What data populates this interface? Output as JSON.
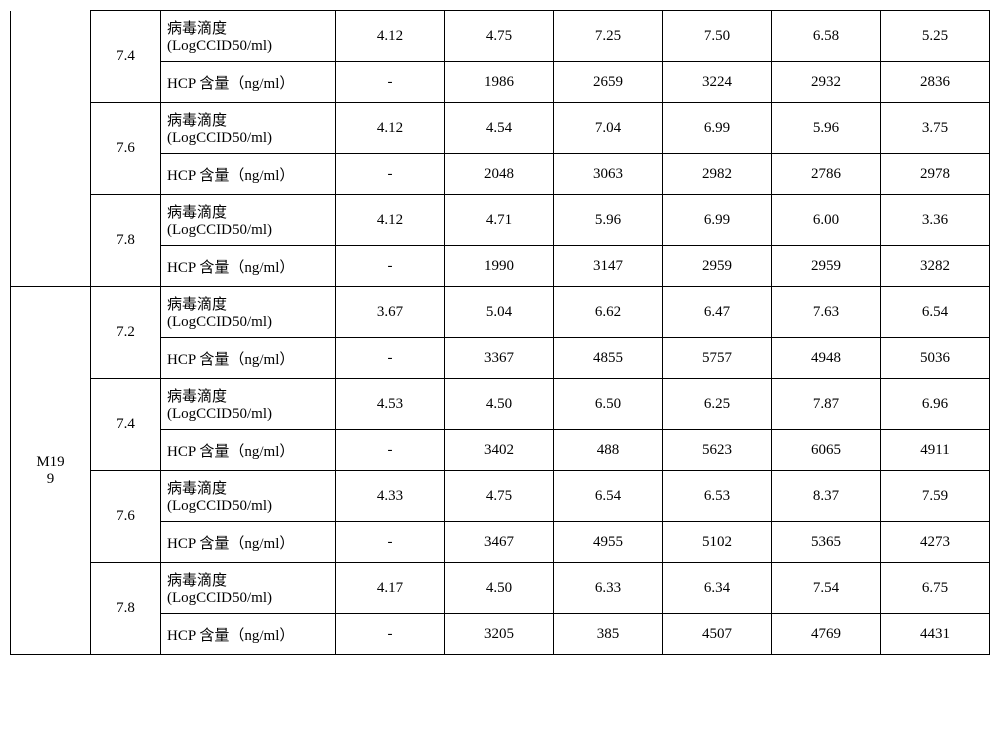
{
  "labels": {
    "titer": "病毒滴度",
    "titerUnit": "(LogCCID50/ml)",
    "hcp": "HCP 含量（ng/ml）"
  },
  "groups": [
    {
      "name": "",
      "showName": false,
      "phRows": [
        {
          "ph": "7.4",
          "titer": [
            "4.12",
            "4.75",
            "7.25",
            "7.50",
            "6.58",
            "5.25"
          ],
          "hcp": [
            "-",
            "1986",
            "2659",
            "3224",
            "2932",
            "2836"
          ]
        },
        {
          "ph": "7.6",
          "titer": [
            "4.12",
            "4.54",
            "7.04",
            "6.99",
            "5.96",
            "3.75"
          ],
          "hcp": [
            "-",
            "2048",
            "3063",
            "2982",
            "2786",
            "2978"
          ]
        },
        {
          "ph": "7.8",
          "titer": [
            "4.12",
            "4.71",
            "5.96",
            "6.99",
            "6.00",
            "3.36"
          ],
          "hcp": [
            "-",
            "1990",
            "3147",
            "2959",
            "2959",
            "3282"
          ]
        }
      ]
    },
    {
      "name": "M19\n9",
      "showName": true,
      "phRows": [
        {
          "ph": "7.2",
          "titer": [
            "3.67",
            "5.04",
            "6.62",
            "6.47",
            "7.63",
            "6.54"
          ],
          "hcp": [
            "-",
            "3367",
            "4855",
            "5757",
            "4948",
            "5036"
          ]
        },
        {
          "ph": "7.4",
          "titer": [
            "4.53",
            "4.50",
            "6.50",
            "6.25",
            "7.87",
            "6.96"
          ],
          "hcp": [
            "-",
            "3402",
            "488",
            "5623",
            "6065",
            "4911"
          ]
        },
        {
          "ph": "7.6",
          "titer": [
            "4.33",
            "4.75",
            "6.54",
            "6.53",
            "8.37",
            "7.59"
          ],
          "hcp": [
            "-",
            "3467",
            "4955",
            "5102",
            "5365",
            "4273"
          ]
        },
        {
          "ph": "7.8",
          "titer": [
            "4.17",
            "4.50",
            "6.33",
            "6.34",
            "7.54",
            "6.75"
          ],
          "hcp": [
            "-",
            "3205",
            "385",
            "4507",
            "4769",
            "4431"
          ]
        }
      ]
    }
  ]
}
